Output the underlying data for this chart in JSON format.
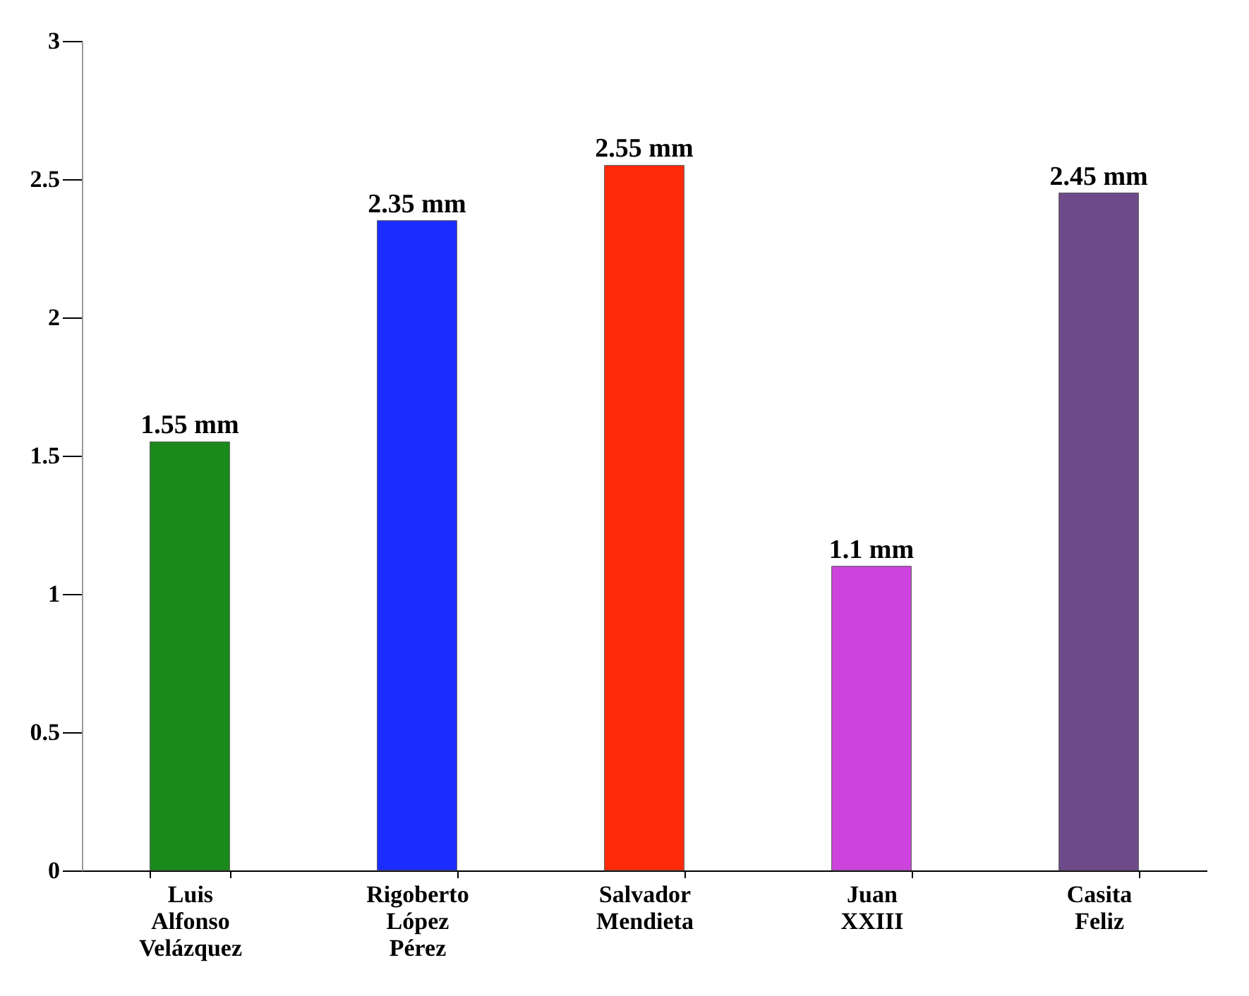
{
  "chart_data": {
    "type": "bar",
    "categories": [
      "Luis Alfonso Velázquez",
      "Rigoberto López Pérez",
      "Salvador Mendieta",
      "Juan XXIII",
      "Casita Feliz"
    ],
    "values": [
      1.55,
      2.35,
      2.55,
      1.1,
      2.45
    ],
    "colors": [
      "#1a8a1a",
      "#1a2cff",
      "#ff2a0a",
      "#cc44dd",
      "#6e4a8a"
    ],
    "value_labels": [
      "1.55 mm",
      "2.35 mm",
      "2.55 mm",
      "1.1 mm",
      "2.45 mm"
    ],
    "ylim": [
      0,
      3
    ],
    "yticks": [
      0,
      0.5,
      1,
      1.5,
      2,
      2.5,
      3
    ],
    "grid": false
  }
}
